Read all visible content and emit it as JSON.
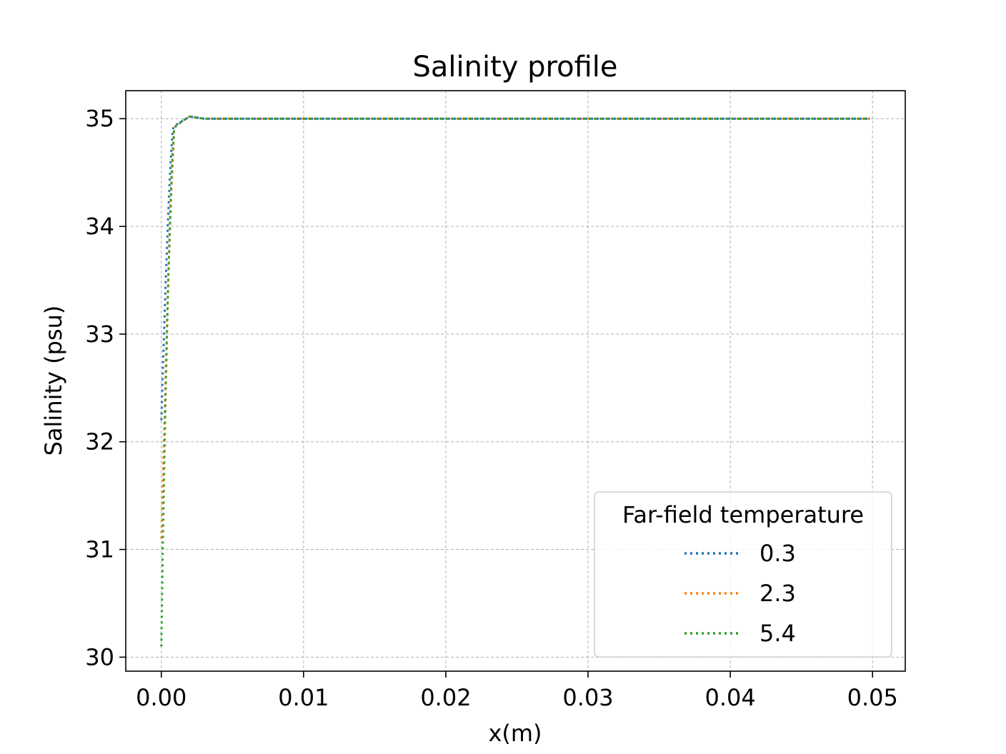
{
  "chart_data": {
    "type": "line",
    "title": "Salinity profile",
    "xlabel": "x(m)",
    "ylabel": "Salinity (psu)",
    "xlim": [
      -0.0025,
      0.0523
    ],
    "ylim": [
      29.87,
      35.26
    ],
    "xticks": [
      0.0,
      0.01,
      0.02,
      0.03,
      0.04,
      0.05
    ],
    "xtick_labels": [
      "0.00",
      "0.01",
      "0.02",
      "0.03",
      "0.04",
      "0.05"
    ],
    "yticks": [
      30,
      31,
      32,
      33,
      34,
      35
    ],
    "ytick_labels": [
      "30",
      "31",
      "32",
      "33",
      "34",
      "35"
    ],
    "grid": true,
    "legend": {
      "title": "Far-field temperature",
      "placement": "lower-right"
    },
    "series": [
      {
        "name": "0.3",
        "color": "#1f77b4",
        "x": [
          0.0,
          0.0001,
          0.0002,
          0.0003,
          0.0004,
          0.0005,
          0.0006,
          0.0007,
          0.0008,
          0.0009,
          0.001,
          0.0015,
          0.002,
          0.003,
          0.01,
          0.02,
          0.03,
          0.04,
          0.0498
        ],
        "y": [
          32.2,
          32.65,
          33.05,
          33.45,
          33.8,
          34.15,
          34.45,
          34.7,
          34.9,
          34.93,
          34.94,
          34.98,
          35.02,
          35.0,
          35.0,
          35.0,
          35.0,
          35.0,
          35.0
        ]
      },
      {
        "name": "2.3",
        "color": "#ff7f0e",
        "x": [
          0.0,
          0.0001,
          0.0002,
          0.0003,
          0.0004,
          0.0005,
          0.0006,
          0.0007,
          0.0008,
          0.0009,
          0.001,
          0.0015,
          0.002,
          0.003,
          0.01,
          0.02,
          0.03,
          0.04,
          0.0498
        ],
        "y": [
          31.1,
          31.6,
          32.1,
          32.6,
          33.1,
          33.55,
          33.95,
          34.3,
          34.6,
          34.88,
          34.93,
          34.98,
          35.02,
          35.0,
          35.0,
          35.0,
          35.0,
          35.0,
          35.0
        ]
      },
      {
        "name": "5.4",
        "color": "#2ca02c",
        "x": [
          0.0,
          0.0001,
          0.0002,
          0.0003,
          0.0004,
          0.0005,
          0.0006,
          0.0007,
          0.0008,
          0.0009,
          0.001,
          0.0015,
          0.002,
          0.003,
          0.01,
          0.02,
          0.03,
          0.04,
          0.0498
        ],
        "y": [
          30.1,
          31.0,
          31.75,
          32.4,
          33.0,
          33.55,
          34.0,
          34.4,
          34.7,
          34.9,
          34.93,
          34.98,
          35.02,
          35.0,
          35.0,
          35.0,
          35.0,
          35.0,
          35.0
        ]
      }
    ]
  }
}
